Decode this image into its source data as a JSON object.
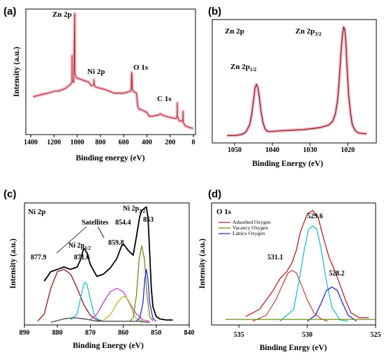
{
  "chart_data": [
    {
      "panel": "(a)",
      "type": "line",
      "title": "",
      "xlabel": "Binding energy (eV)",
      "ylabel": "Intensity (a.u.)",
      "xlim": [
        1400,
        0
      ],
      "x_ticks": [
        "1400",
        "1200",
        "1000",
        "800",
        "600",
        "400",
        "200",
        "0"
      ],
      "annotations": [
        {
          "text": "Zn 2p",
          "x": 1022
        },
        {
          "text": "Ni 2p",
          "x": 855
        },
        {
          "text": "O 1s",
          "x": 531
        },
        {
          "text": "C 1s",
          "x": 285
        }
      ],
      "series": [
        {
          "color": "#b22222",
          "x": [
            1380,
            1300,
            1250,
            1200,
            1150,
            1100,
            1060,
            1045,
            1044,
            1043,
            1030,
            1022,
            1021,
            1020,
            1010,
            990,
            960,
            930,
            900,
            880,
            870,
            856,
            855,
            854,
            840,
            800,
            760,
            720,
            680,
            640,
            600,
            560,
            536,
            531,
            529,
            526,
            510,
            490,
            480,
            470,
            440,
            400,
            380,
            350,
            300,
            285,
            270,
            240,
            200,
            150,
            140,
            139,
            138,
            120,
            100,
            90,
            89,
            88,
            70,
            40,
            10,
            0
          ],
          "y": [
            0.3,
            0.32,
            0.33,
            0.345,
            0.35,
            0.37,
            0.4,
            0.42,
            0.64,
            0.43,
            0.42,
            0.96,
            0.985,
            0.5,
            0.46,
            0.45,
            0.44,
            0.43,
            0.42,
            0.39,
            0.395,
            0.4,
            0.44,
            0.395,
            0.38,
            0.37,
            0.36,
            0.345,
            0.33,
            0.33,
            0.33,
            0.34,
            0.35,
            0.5,
            0.48,
            0.36,
            0.34,
            0.33,
            0.23,
            0.2,
            0.19,
            0.17,
            0.14,
            0.14,
            0.15,
            0.16,
            0.15,
            0.14,
            0.13,
            0.12,
            0.14,
            0.25,
            0.14,
            0.1,
            0.1,
            0.11,
            0.18,
            0.09,
            0.06,
            0.05,
            0.04,
            0.04
          ]
        }
      ]
    },
    {
      "panel": "(b)",
      "type": "line",
      "title": "Zn 2p",
      "xlabel": "Binding Energy (eV)",
      "ylabel": "",
      "xlim": [
        1055,
        1013
      ],
      "x_ticks": [
        "1050",
        "1040",
        "1030",
        "1020"
      ],
      "annotations": [
        {
          "text": "Zn 2p1/2",
          "base": "Zn 2p",
          "sub": "1/2",
          "x": 1044
        },
        {
          "text": "Zn 2p3/2",
          "base": "Zn 2p",
          "sub": "3/2",
          "x": 1021
        }
      ],
      "series": [
        {
          "color": "#8b1a1a",
          "x": [
            1052,
            1050,
            1048,
            1047,
            1046,
            1045.5,
            1045,
            1044.6,
            1044.2,
            1043.8,
            1043.4,
            1043,
            1042.5,
            1042,
            1041.5,
            1041,
            1040,
            1038,
            1035,
            1032,
            1029,
            1027,
            1025,
            1024,
            1023.3,
            1022.7,
            1022.2,
            1021.8,
            1021.4,
            1021.1,
            1020.8,
            1020.5,
            1020.2,
            1019.8,
            1019.3,
            1018.8,
            1018,
            1017,
            1015
          ],
          "y": [
            0.05,
            0.05,
            0.06,
            0.08,
            0.14,
            0.22,
            0.34,
            0.45,
            0.48,
            0.45,
            0.36,
            0.25,
            0.16,
            0.11,
            0.09,
            0.085,
            0.085,
            0.09,
            0.095,
            0.1,
            0.11,
            0.12,
            0.14,
            0.17,
            0.23,
            0.35,
            0.55,
            0.75,
            0.9,
            0.96,
            0.94,
            0.82,
            0.62,
            0.4,
            0.24,
            0.14,
            0.09,
            0.07,
            0.065
          ]
        }
      ]
    },
    {
      "panel": "(c)",
      "type": "line",
      "title": "Ni 2p",
      "xlabel": "Binding Energy (eV)",
      "ylabel": "Intensity (a.u.)",
      "xlim": [
        890,
        840
      ],
      "x_ticks": [
        "890",
        "880",
        "870",
        "860",
        "850",
        "840"
      ],
      "annotations": [
        {
          "text": "877.9"
        },
        {
          "text": "871.6"
        },
        {
          "text": "859.8"
        },
        {
          "text": "854.4"
        },
        {
          "text": "853"
        },
        {
          "text": "Satellites"
        },
        {
          "text": "Ni 2p1/2",
          "base": "Ni 2p",
          "sub": "1/2"
        },
        {
          "text": "Ni 2p3/2",
          "base": "Ni 2p",
          "sub": "3/2"
        }
      ],
      "series": [
        {
          "color": "#000000",
          "x": [
            884,
            882,
            880,
            878,
            876,
            874,
            873,
            872,
            871,
            870,
            868,
            866,
            864,
            862,
            860.5,
            859.8,
            858.5,
            857,
            856,
            855,
            854.4,
            853.5,
            853,
            852.5,
            852,
            851.5,
            851,
            850,
            849,
            847,
            845
          ],
          "y": [
            0.36,
            0.44,
            0.46,
            0.48,
            0.46,
            0.48,
            0.54,
            0.64,
            0.6,
            0.5,
            0.4,
            0.42,
            0.47,
            0.55,
            0.66,
            0.67,
            0.62,
            0.58,
            0.74,
            0.91,
            0.96,
            0.98,
            0.99,
            0.9,
            0.6,
            0.3,
            0.14,
            0.06,
            0.04,
            0.03,
            0.03
          ]
        },
        {
          "color": "#8b1a1a",
          "x": [
            886,
            884,
            882,
            880,
            878,
            876,
            874,
            872,
            870,
            868,
            866
          ],
          "y": [
            0.02,
            0.08,
            0.3,
            0.44,
            0.46,
            0.42,
            0.3,
            0.16,
            0.07,
            0.03,
            0.02
          ]
        },
        {
          "color": "#1fbcd4",
          "x": [
            876,
            874,
            873,
            872,
            871.6,
            871,
            870,
            869,
            868,
            866
          ],
          "y": [
            0.03,
            0.08,
            0.21,
            0.33,
            0.35,
            0.33,
            0.21,
            0.09,
            0.04,
            0.02
          ]
        },
        {
          "color": "#c040c8",
          "x": [
            870,
            868,
            866,
            864,
            862,
            860,
            858,
            856,
            854,
            852
          ],
          "y": [
            0.03,
            0.08,
            0.18,
            0.27,
            0.3,
            0.27,
            0.17,
            0.08,
            0.03,
            0.02
          ]
        },
        {
          "color": "#b8b822",
          "x": [
            866,
            864,
            862,
            860.5,
            859.8,
            859,
            858,
            857,
            856,
            854
          ],
          "y": [
            0.03,
            0.07,
            0.17,
            0.22,
            0.23,
            0.22,
            0.16,
            0.09,
            0.04,
            0.02
          ]
        },
        {
          "color": "#6f8c1a",
          "x": [
            858,
            857,
            856,
            855.2,
            854.4,
            853.6,
            852.8,
            852,
            851
          ],
          "y": [
            0.02,
            0.05,
            0.24,
            0.55,
            0.66,
            0.55,
            0.24,
            0.06,
            0.02
          ]
        },
        {
          "color": "#2828d2",
          "x": [
            856,
            855,
            854,
            853.5,
            853,
            852.5,
            852,
            851,
            850
          ],
          "y": [
            0.02,
            0.05,
            0.18,
            0.37,
            0.46,
            0.37,
            0.18,
            0.04,
            0.02
          ]
        },
        {
          "color": "#444444",
          "x": [
            882,
            878,
            875,
            872,
            868,
            864,
            860,
            856,
            852
          ],
          "y": [
            0.01,
            0.04,
            0.05,
            0.04,
            0.02,
            0.02,
            0.02,
            0.02,
            0.01
          ]
        }
      ]
    },
    {
      "panel": "(d)",
      "type": "line",
      "title": "O 1s",
      "xlabel": "Binding Enrgy (eV)",
      "ylabel": "Intensity (a.u.)",
      "xlim": [
        537,
        525
      ],
      "x_ticks": [
        "535",
        "530",
        "525"
      ],
      "annotations": [
        {
          "text": "531.1"
        },
        {
          "text": "529.6"
        },
        {
          "text": "528.2"
        }
      ],
      "legend": [
        {
          "label": "Adsorbed Oxygen",
          "color": "#b22222"
        },
        {
          "label": "Vacancy Oxygen",
          "color": "#6f8c1a"
        },
        {
          "label": "Lattice Oxygen",
          "color": "#2828d2"
        }
      ],
      "series": [
        {
          "name": "Adsorbed Oxygen",
          "color": "#b22222",
          "x": [
            534.5,
            533.5,
            532.5,
            532,
            531.5,
            531.1,
            530.8,
            530.5,
            530,
            529.6,
            529.2,
            528.8,
            528.4,
            528.1,
            527.7,
            527.2,
            526.8,
            526.2,
            525.5
          ],
          "y": [
            0.06,
            0.12,
            0.28,
            0.38,
            0.44,
            0.52,
            0.62,
            0.78,
            0.93,
            0.96,
            0.9,
            0.72,
            0.56,
            0.48,
            0.36,
            0.2,
            0.09,
            0.05,
            0.05
          ]
        },
        {
          "name": "",
          "color": "#c0504d",
          "x": [
            534,
            533,
            532.3,
            531.8,
            531.4,
            531.1,
            530.8,
            530.4,
            530,
            529.5,
            529,
            528.5
          ],
          "y": [
            0.02,
            0.07,
            0.2,
            0.33,
            0.43,
            0.45,
            0.43,
            0.32,
            0.2,
            0.09,
            0.04,
            0.02
          ]
        },
        {
          "name": "",
          "color": "#1fbcd4",
          "x": [
            532,
            531,
            530.6,
            530.2,
            529.9,
            529.6,
            529.3,
            529,
            528.6,
            528.2,
            527.6,
            527
          ],
          "y": [
            0.02,
            0.12,
            0.36,
            0.64,
            0.8,
            0.83,
            0.8,
            0.64,
            0.36,
            0.14,
            0.03,
            0.02
          ]
        },
        {
          "name": "",
          "color": "#2828d2",
          "x": [
            530,
            529.4,
            529,
            528.6,
            528.2,
            527.8,
            527.4,
            527,
            526.4
          ],
          "y": [
            0.02,
            0.07,
            0.17,
            0.28,
            0.31,
            0.28,
            0.17,
            0.07,
            0.02
          ]
        },
        {
          "name": "",
          "color": "#6f8c1a",
          "x": [
            536,
            534,
            532,
            530,
            528,
            526,
            525
          ],
          "y": [
            0.035,
            0.035,
            0.035,
            0.035,
            0.035,
            0.035,
            0.035
          ]
        }
      ]
    }
  ]
}
